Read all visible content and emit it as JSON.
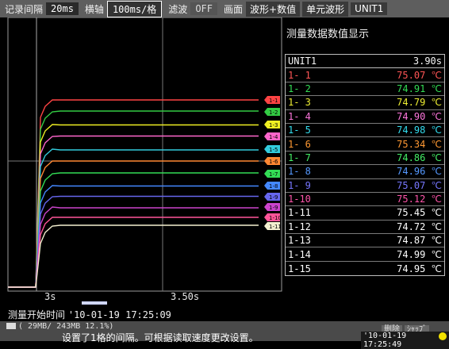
{
  "toolbar": {
    "rec_interval_label": "记录间隔",
    "rec_interval_value": "20ms",
    "time_axis_label": "横轴",
    "time_axis_value": "100ms/格",
    "filter_label": "滤波",
    "filter_value": "OFF",
    "screen_label": "画面",
    "screen_value": "波形+数值",
    "unit_waveform": "单元波形",
    "unit": "UNIT1"
  },
  "panel": {
    "title": "测量数据数值显示",
    "header_name": "UNIT1",
    "header_value": "3.90s",
    "rows": [
      {
        "ch": "1- 1",
        "value": "75.07 ℃",
        "color": "#ff5555"
      },
      {
        "ch": "1- 2",
        "value": "74.91 ℃",
        "color": "#33dd55"
      },
      {
        "ch": "1- 3",
        "value": "74.79 ℃",
        "color": "#eeee33"
      },
      {
        "ch": "1- 4",
        "value": "74.90 ℃",
        "color": "#ff77dd"
      },
      {
        "ch": "1- 5",
        "value": "74.98 ℃",
        "color": "#33ddee"
      },
      {
        "ch": "1- 6",
        "value": "75.34 ℃",
        "color": "#ff9933"
      },
      {
        "ch": "1- 7",
        "value": "74.86 ℃",
        "color": "#44ee66"
      },
      {
        "ch": "1- 8",
        "value": "74.96 ℃",
        "color": "#5599ff"
      },
      {
        "ch": "1- 9",
        "value": "75.07 ℃",
        "color": "#7777ff"
      },
      {
        "ch": "1-10",
        "value": "75.12 ℃",
        "color": "#ff55aa"
      },
      {
        "ch": "1-11",
        "value": "75.45 ℃",
        "color": "#ffffff"
      },
      {
        "ch": "1-12",
        "value": "74.72 ℃",
        "color": "#ffffff"
      },
      {
        "ch": "1-13",
        "value": "74.87 ℃",
        "color": "#ffffff"
      },
      {
        "ch": "1-14",
        "value": "74.99 ℃",
        "color": "#ffffff"
      },
      {
        "ch": "1-15",
        "value": "74.95 ℃",
        "color": "#ffffff"
      }
    ]
  },
  "plot": {
    "x_label_left": "3s",
    "x_label_mid": "3.50s",
    "markers": [
      {
        "label": "1-1",
        "color": "#ff4444"
      },
      {
        "label": "1-2",
        "color": "#33cc44"
      },
      {
        "label": "1-3",
        "color": "#eeee22"
      },
      {
        "label": "1-4",
        "color": "#ff66cc"
      },
      {
        "label": "1-5",
        "color": "#33ccdd"
      },
      {
        "label": "1-6",
        "color": "#ff8833"
      },
      {
        "label": "1-7",
        "color": "#33dd55"
      },
      {
        "label": "1-8",
        "color": "#4488ff"
      },
      {
        "label": "1-9",
        "color": "#6666ee"
      },
      {
        "label": "1-9",
        "color": "#cc44cc"
      },
      {
        "label": "1-10",
        "color": "#ff5599"
      },
      {
        "label": "1-11",
        "color": "#f4f0d0"
      }
    ]
  },
  "footer": {
    "start_label": "测量开始时间",
    "start_time": "'10-01-19 17:25:09",
    "memory": "( 29MB/ 243MB 12.1%)",
    "key_a": "删除",
    "key_b": "ｼｬｯﾌﾞ",
    "message": "设置了1格的间隔。可根据读取速度更改设置。",
    "clock": "'10-01-19 17:25:49"
  }
}
